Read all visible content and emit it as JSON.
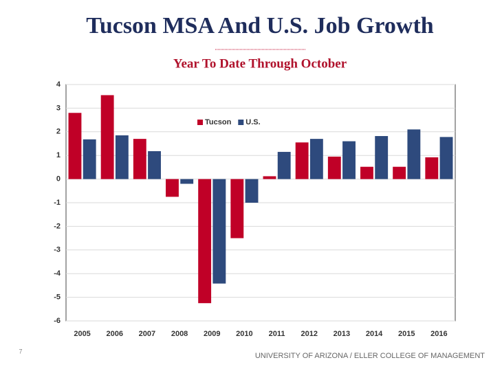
{
  "chart_data": {
    "type": "bar",
    "title": "Tucson MSA And U.S. Job Growth",
    "subtitle": "Year To Date Through October",
    "categories": [
      "2005",
      "2006",
      "2007",
      "2008",
      "2009",
      "2010",
      "2011",
      "2012",
      "2013",
      "2014",
      "2015",
      "2016"
    ],
    "series": [
      {
        "name": "Tucson",
        "color": "#c00027",
        "values": [
          2.8,
          3.55,
          1.7,
          -0.75,
          -5.25,
          -2.5,
          0.12,
          1.55,
          0.95,
          0.52,
          0.52,
          0.92
        ]
      },
      {
        "name": "U.S.",
        "color": "#2e4a7d",
        "values": [
          1.68,
          1.85,
          1.18,
          -0.2,
          -4.42,
          -1.0,
          1.15,
          1.7,
          1.6,
          1.82,
          2.1,
          1.78
        ]
      }
    ],
    "ylim": [
      -6,
      4
    ],
    "yticks": [
      -6,
      -5,
      -4,
      -3,
      -2,
      -1,
      0,
      1,
      2,
      3,
      4
    ],
    "grid": true,
    "legend": "top"
  },
  "footer": {
    "page": "7",
    "text": "UNIVERSITY OF ARIZONA / ELLER COLLEGE OF MANAGEMENT"
  }
}
